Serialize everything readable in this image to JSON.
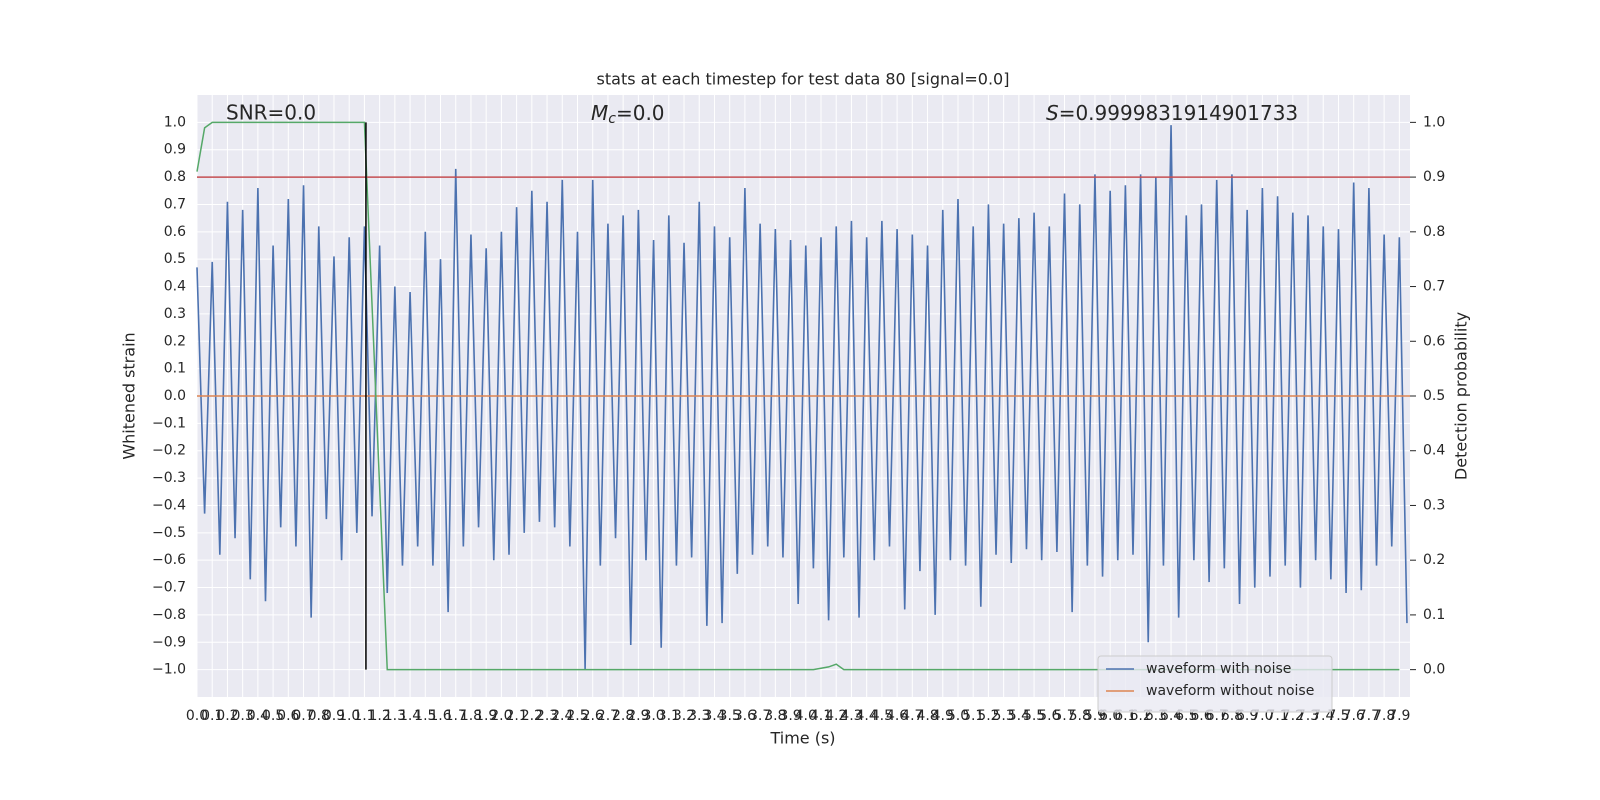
{
  "chart_data": {
    "type": "line",
    "title": "stats at each timestep for test data 80 [signal=0.0]",
    "x_label": "Time (s)",
    "y_label": "Whitened strain",
    "y2_label": "Detection probability",
    "annotations": [
      "SNR=0.0",
      "Mc=0.0",
      "S=0.9999831914901733"
    ],
    "grid": true,
    "legend": "lower right",
    "xlim": [
      0,
      7.97
    ],
    "ylim": [
      -1.1,
      1.1
    ],
    "y2lim": [
      -0.05,
      1.05
    ],
    "xticks": [
      {
        "value": 0,
        "label": "0.0"
      },
      0.1,
      0.2,
      0.3,
      0.4,
      0.5,
      0.6,
      0.7,
      0.8,
      0.9,
      {
        "value": 1,
        "label": "1.0"
      },
      1.1,
      1.2,
      1.3,
      1.4,
      1.5,
      1.6,
      1.7,
      1.8,
      1.9,
      {
        "value": 2,
        "label": "2.0"
      },
      2.1,
      2.2,
      2.3,
      2.4,
      2.5,
      2.6,
      2.7,
      2.8,
      2.9,
      {
        "value": 3,
        "label": "3.0"
      },
      3.1,
      3.2,
      3.3,
      3.4,
      3.5,
      3.6,
      3.7,
      3.8,
      3.9,
      {
        "value": 4,
        "label": "4.0"
      },
      4.1,
      4.2,
      4.3,
      4.4,
      4.5,
      4.6,
      4.7,
      4.8,
      4.9,
      {
        "value": 5,
        "label": "5.0"
      },
      5.1,
      5.2,
      5.3,
      5.4,
      5.5,
      5.6,
      5.7,
      5.8,
      5.9,
      {
        "value": 6,
        "label": "6.0"
      },
      6.1,
      6.2,
      6.3,
      6.4,
      6.5,
      6.6,
      6.7,
      6.8,
      6.9,
      {
        "value": 7,
        "label": "7.0"
      },
      7.1,
      7.2,
      7.3,
      7.4,
      7.5,
      7.6,
      7.7,
      7.8,
      7.9
    ],
    "yticks": [
      {
        "value": -1,
        "label": "−1.0"
      },
      {
        "value": -0.9,
        "label": "−0.9"
      },
      {
        "value": -0.8,
        "label": "−0.8"
      },
      {
        "value": -0.7,
        "label": "−0.7"
      },
      {
        "value": -0.6,
        "label": "−0.6"
      },
      {
        "value": -0.5,
        "label": "−0.5"
      },
      {
        "value": -0.4,
        "label": "−0.4"
      },
      {
        "value": -0.3,
        "label": "−0.3"
      },
      {
        "value": -0.2,
        "label": "−0.2"
      },
      {
        "value": -0.1,
        "label": "−0.1"
      },
      {
        "value": 0,
        "label": "0.0"
      },
      0.1,
      0.2,
      0.3,
      0.4,
      0.5,
      0.6,
      0.7,
      0.8,
      0.9,
      {
        "value": 1,
        "label": "1.0"
      }
    ],
    "y2ticks": [
      {
        "value": 0,
        "label": "0.0"
      },
      0.1,
      0.2,
      0.3,
      0.4,
      0.5,
      0.6,
      0.7,
      0.8,
      0.9,
      {
        "value": 1,
        "label": "1.0"
      }
    ],
    "series": [
      {
        "name": "waveform with noise",
        "color": "#4c72b0",
        "x": [
          0,
          0.05,
          0.1,
          0.15,
          0.2,
          0.25,
          0.3,
          0.35,
          0.4,
          0.45,
          0.5,
          0.55,
          0.6,
          0.65,
          0.7,
          0.75,
          0.8,
          0.85,
          0.9,
          0.95,
          1,
          1.05,
          1.1,
          1.15,
          1.2,
          1.25,
          1.3,
          1.35,
          1.4,
          1.45,
          1.5,
          1.55,
          1.6,
          1.65,
          1.7,
          1.75,
          1.8,
          1.85,
          1.9,
          1.95,
          2,
          2.05,
          2.1,
          2.15,
          2.2,
          2.25,
          2.3,
          2.35,
          2.4,
          2.45,
          2.5,
          2.55,
          2.6,
          2.65,
          2.7,
          2.75,
          2.8,
          2.85,
          2.9,
          2.95,
          3,
          3.05,
          3.1,
          3.15,
          3.2,
          3.25,
          3.3,
          3.35,
          3.4,
          3.45,
          3.5,
          3.55,
          3.6,
          3.65,
          3.7,
          3.75,
          3.8,
          3.85,
          3.9,
          3.95,
          4,
          4.05,
          4.1,
          4.15,
          4.2,
          4.25,
          4.3,
          4.35,
          4.4,
          4.45,
          4.5,
          4.55,
          4.6,
          4.65,
          4.7,
          4.75,
          4.8,
          4.85,
          4.9,
          4.95,
          5,
          5.05,
          5.1,
          5.15,
          5.2,
          5.25,
          5.3,
          5.35,
          5.4,
          5.45,
          5.5,
          5.55,
          5.6,
          5.65,
          5.7,
          5.75,
          5.8,
          5.85,
          5.9,
          5.95,
          6,
          6.05,
          6.1,
          6.15,
          6.2,
          6.25,
          6.3,
          6.35,
          6.4,
          6.45,
          6.5,
          6.55,
          6.6,
          6.65,
          6.7,
          6.75,
          6.8,
          6.85,
          6.9,
          6.95,
          7,
          7.05,
          7.1,
          7.15,
          7.2,
          7.25,
          7.3,
          7.35,
          7.4,
          7.45,
          7.5,
          7.55,
          7.6,
          7.65,
          7.7,
          7.75,
          7.8,
          7.85,
          7.9,
          7.95
        ],
        "values": [
          0.47,
          -0.43,
          0.49,
          -0.58,
          0.71,
          -0.52,
          0.68,
          -0.67,
          0.76,
          -0.75,
          0.55,
          -0.48,
          0.72,
          -0.55,
          0.77,
          -0.81,
          0.62,
          -0.45,
          0.51,
          -0.6,
          0.58,
          -0.5,
          0.62,
          -0.44,
          0.55,
          -0.72,
          0.4,
          -0.62,
          0.38,
          -0.55,
          0.6,
          -0.62,
          0.5,
          -0.79,
          0.83,
          -0.55,
          0.59,
          -0.48,
          0.54,
          -0.6,
          0.6,
          -0.58,
          0.69,
          -0.5,
          0.75,
          -0.46,
          0.71,
          -0.48,
          0.79,
          -0.55,
          0.6,
          -1.0,
          0.79,
          -0.62,
          0.63,
          -0.52,
          0.66,
          -0.91,
          0.68,
          -0.6,
          0.57,
          -0.92,
          0.66,
          -0.62,
          0.56,
          -0.59,
          0.71,
          -0.84,
          0.62,
          -0.83,
          0.58,
          -0.65,
          0.76,
          -0.58,
          0.63,
          -0.55,
          0.61,
          -0.59,
          0.57,
          -0.76,
          0.55,
          -0.63,
          0.58,
          -0.82,
          0.62,
          -0.59,
          0.64,
          -0.81,
          0.58,
          -0.6,
          0.64,
          -0.55,
          0.61,
          -0.78,
          0.59,
          -0.64,
          0.55,
          -0.8,
          0.68,
          -0.6,
          0.72,
          -0.62,
          0.62,
          -0.77,
          0.7,
          -0.58,
          0.63,
          -0.61,
          0.65,
          -0.56,
          0.67,
          -0.6,
          0.62,
          -0.57,
          0.74,
          -0.79,
          0.7,
          -0.62,
          0.81,
          -0.66,
          0.75,
          -0.6,
          0.77,
          -0.58,
          0.81,
          -0.9,
          0.8,
          -0.62,
          0.99,
          -0.81,
          0.66,
          -0.6,
          0.7,
          -0.68,
          0.79,
          -0.63,
          0.81,
          -0.76,
          0.68,
          -0.7,
          0.76,
          -0.66,
          0.73,
          -0.62,
          0.67,
          -0.7,
          0.66,
          -0.6,
          0.62,
          -0.67,
          0.61,
          -0.72,
          0.78,
          -0.71,
          0.76,
          -0.62,
          0.59,
          -0.55,
          0.58,
          -0.83
        ]
      },
      {
        "name": "waveform without noise",
        "color": "#dd8452",
        "x": [
          0,
          7.97
        ],
        "values": [
          0,
          0
        ]
      },
      {
        "color": "#55a868",
        "axis": "y2",
        "x": [
          0,
          0.05,
          0.1,
          1.1,
          1.25,
          4.05,
          4.15,
          4.2,
          4.25,
          7.9
        ],
        "values": [
          0.91,
          0.99,
          1.0,
          1.0,
          0.0,
          0.0,
          0.005,
          0.01,
          0.0,
          0.0
        ]
      }
    ],
    "reference_lines": [
      {
        "y": 0.8,
        "color": "#c44e52"
      },
      {
        "x": 1.11,
        "y_range": [
          -1,
          1
        ],
        "color": "#000000"
      }
    ]
  }
}
